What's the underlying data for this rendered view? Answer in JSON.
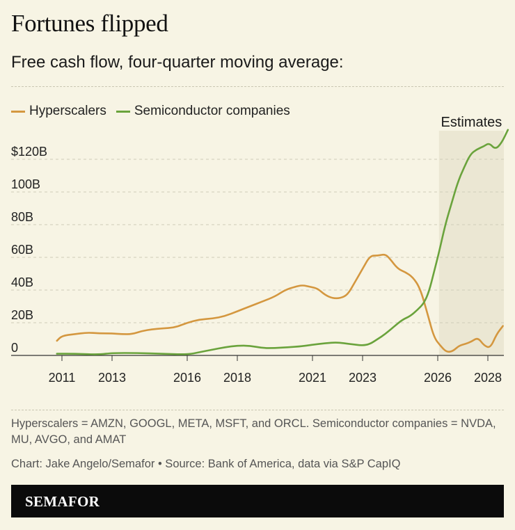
{
  "header": {
    "title": "Fortunes flipped",
    "subtitle": "Free cash flow, four-quarter moving average:"
  },
  "footer": {
    "note": "Hyperscalers = AMZN, GOOGL, META, MSFT, and ORCL. Semiconductor companies = NVDA, MU, AVGO, and AMAT",
    "credit": "Chart: Jake Angelo/Semafor • Source: Bank of America, data via S&P CapIQ",
    "brand": "SEMAFOR"
  },
  "colors": {
    "hyperscalers": "#d4973f",
    "semiconductors": "#6aa33c",
    "estimates_band": "#ebe7d3",
    "background": "#f7f4e4"
  },
  "chart_data": {
    "type": "line",
    "title": "Fortunes flipped",
    "subtitle": "Free cash flow, four-quarter moving average:",
    "xlabel": "",
    "ylabel": "",
    "x_ticks": [
      "2011",
      "2013",
      "2016",
      "2018",
      "2021",
      "2023",
      "2026",
      "2028"
    ],
    "x_tick_values": [
      2011.0,
      2013.0,
      2016.0,
      2018.0,
      2021.0,
      2023.0,
      2026.0,
      2028.0
    ],
    "y_ticks": [
      "0",
      "20B",
      "40B",
      "60B",
      "80B",
      "100B",
      "$120B"
    ],
    "y_tick_values": [
      0,
      20,
      40,
      60,
      80,
      100,
      120
    ],
    "ylim": [
      0,
      130
    ],
    "legend_position": "top-left",
    "grid": "horizontal dashed",
    "annotation": {
      "label": "Estimates",
      "x_start": 2026.05,
      "x_end": 2028.85
    },
    "series": [
      {
        "name": "Hyperscalers",
        "color": "#d4973f",
        "points": [
          [
            2010.8,
            9
          ],
          [
            2011.0,
            12
          ],
          [
            2011.5,
            13
          ],
          [
            2012.0,
            14
          ],
          [
            2012.5,
            13.5
          ],
          [
            2013.0,
            13.5
          ],
          [
            2013.4,
            13
          ],
          [
            2013.8,
            13
          ],
          [
            2014.2,
            15
          ],
          [
            2014.6,
            16
          ],
          [
            2015.0,
            16.5
          ],
          [
            2015.5,
            17
          ],
          [
            2016.0,
            20
          ],
          [
            2016.5,
            22
          ],
          [
            2017.0,
            22.5
          ],
          [
            2017.5,
            24
          ],
          [
            2018.0,
            27
          ],
          [
            2018.5,
            30
          ],
          [
            2019.0,
            33
          ],
          [
            2019.5,
            36
          ],
          [
            2019.9,
            40
          ],
          [
            2020.3,
            42
          ],
          [
            2020.6,
            43
          ],
          [
            2020.9,
            42
          ],
          [
            2021.2,
            41
          ],
          [
            2021.5,
            37
          ],
          [
            2021.8,
            35
          ],
          [
            2022.1,
            35
          ],
          [
            2022.4,
            37
          ],
          [
            2022.7,
            45
          ],
          [
            2023.0,
            53
          ],
          [
            2023.3,
            61
          ],
          [
            2023.6,
            61
          ],
          [
            2023.9,
            62
          ],
          [
            2024.1,
            59
          ],
          [
            2024.4,
            53
          ],
          [
            2024.7,
            51
          ],
          [
            2025.0,
            48
          ],
          [
            2025.3,
            41
          ],
          [
            2025.6,
            25
          ],
          [
            2025.85,
            11
          ],
          [
            2026.1,
            6
          ],
          [
            2026.35,
            2
          ],
          [
            2026.6,
            2.5
          ],
          [
            2026.85,
            6
          ],
          [
            2027.1,
            7
          ],
          [
            2027.35,
            8.5
          ],
          [
            2027.6,
            11
          ],
          [
            2027.85,
            6
          ],
          [
            2028.1,
            4.5
          ],
          [
            2028.35,
            13
          ],
          [
            2028.6,
            18
          ]
        ]
      },
      {
        "name": "Semiconductor companies",
        "color": "#6aa33c",
        "points": [
          [
            2010.8,
            1
          ],
          [
            2011.5,
            1
          ],
          [
            2012.5,
            0.5
          ],
          [
            2013.0,
            1.5
          ],
          [
            2014.0,
            1.5
          ],
          [
            2015.0,
            1
          ],
          [
            2016.0,
            0.5
          ],
          [
            2016.5,
            2
          ],
          [
            2017.0,
            3.5
          ],
          [
            2017.5,
            5
          ],
          [
            2018.0,
            6
          ],
          [
            2018.5,
            6
          ],
          [
            2019.0,
            4.5
          ],
          [
            2019.5,
            4.5
          ],
          [
            2020.0,
            5
          ],
          [
            2020.5,
            5.5
          ],
          [
            2021.0,
            6.5
          ],
          [
            2021.5,
            7.5
          ],
          [
            2022.0,
            8
          ],
          [
            2022.5,
            7
          ],
          [
            2023.0,
            6
          ],
          [
            2023.3,
            7
          ],
          [
            2023.6,
            10
          ],
          [
            2023.9,
            13
          ],
          [
            2024.2,
            17
          ],
          [
            2024.6,
            22
          ],
          [
            2024.9,
            24
          ],
          [
            2025.2,
            28
          ],
          [
            2025.45,
            32
          ],
          [
            2025.65,
            39
          ],
          [
            2025.85,
            51
          ],
          [
            2026.05,
            63
          ],
          [
            2026.3,
            80
          ],
          [
            2026.55,
            93
          ],
          [
            2026.8,
            106
          ],
          [
            2027.05,
            115
          ],
          [
            2027.3,
            123
          ],
          [
            2027.55,
            126
          ],
          [
            2027.85,
            128
          ],
          [
            2028.05,
            130
          ],
          [
            2028.3,
            126
          ],
          [
            2028.55,
            130
          ],
          [
            2028.8,
            138
          ]
        ]
      }
    ]
  }
}
